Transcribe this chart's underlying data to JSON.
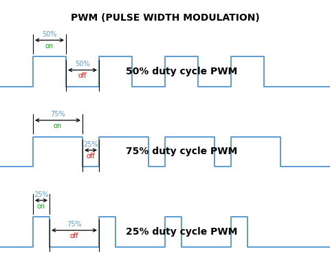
{
  "title": "PWM (PULSE WIDTH MODULATION)",
  "title_fontsize": 10,
  "background_color": "#ffffff",
  "signal_color": "#5b9bd5",
  "pwm_rows": [
    {
      "duty": 0.5,
      "label": "50% duty cycle PWM",
      "on_pct": "50%",
      "on_word": "on",
      "off_pct": "50%",
      "off_word": "off"
    },
    {
      "duty": 0.75,
      "label": "75% duty cycle PWM",
      "on_pct": "75%",
      "on_word": "on",
      "off_pct": "25%",
      "off_word": "off"
    },
    {
      "duty": 0.25,
      "label": "25% duty cycle PWM",
      "on_pct": "25%",
      "on_word": "on",
      "off_pct": "75%",
      "off_word": "off"
    }
  ],
  "signal_lw": 1.4,
  "arrow_color": "black",
  "on_color": "#5b9bd5",
  "off_color": "#ff0000",
  "green_color": "#00aa00"
}
